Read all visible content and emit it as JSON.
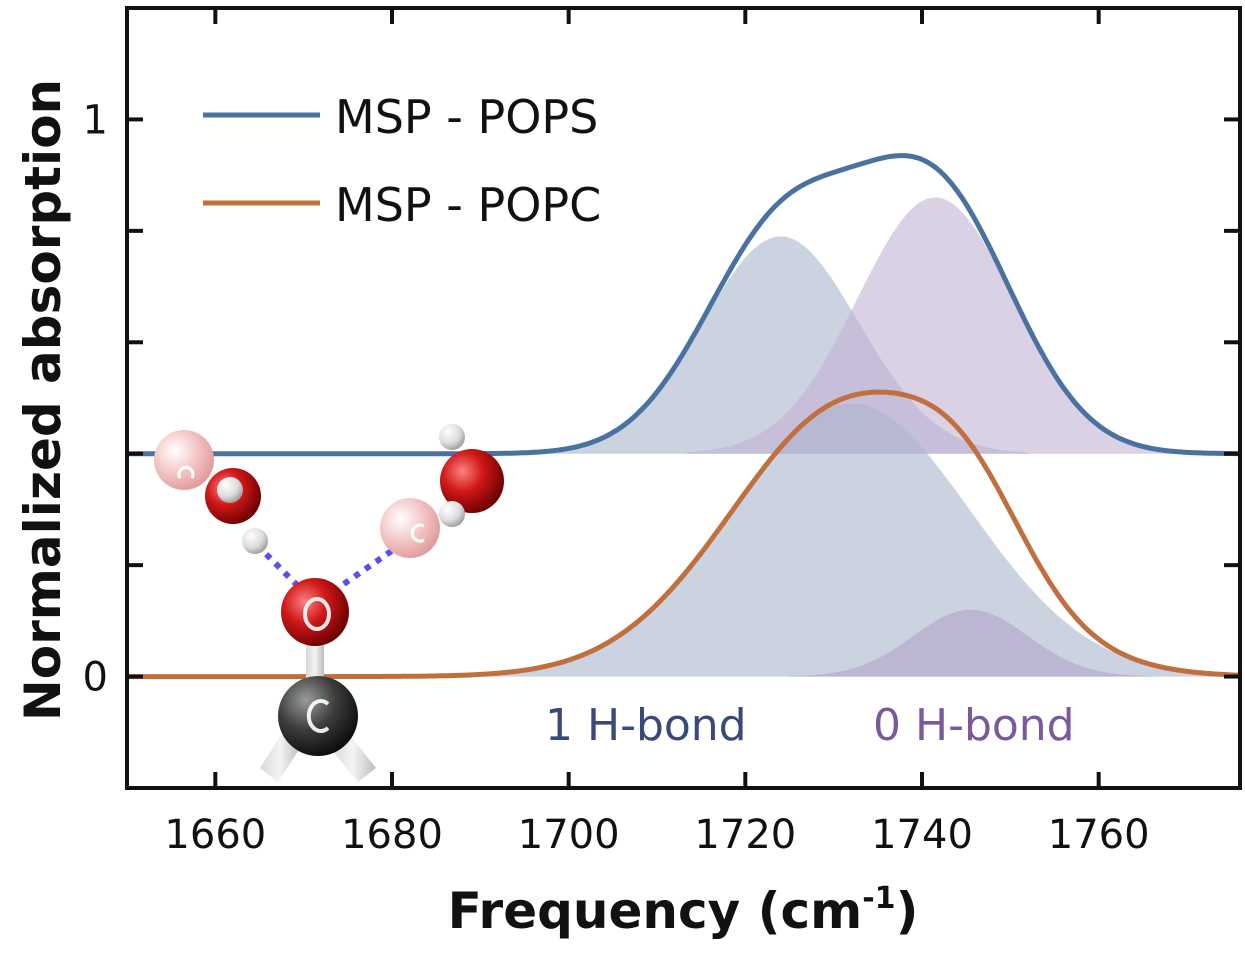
{
  "chart_data": {
    "type": "area",
    "xlabel": "Frequency (cm",
    "xlabel_sup": "-1",
    "xlabel_end": ")",
    "ylabel": "Normalized absorption",
    "xlim": [
      1650,
      1776
    ],
    "ylim": [
      -0.2,
      1.2
    ],
    "x_ticks": [
      1660,
      1680,
      1700,
      1720,
      1740,
      1760
    ],
    "y_ticks": [
      0,
      1
    ],
    "y_minor_ticks": [
      0.2,
      0.4,
      0.6,
      0.8
    ],
    "legend_position": "top-left",
    "series": [
      {
        "name": "MSP - POPS",
        "color": "#4a72a0",
        "baseline": 0.4,
        "components": [
          {
            "label": "1 H-bond",
            "center": 1724,
            "width": 8.8,
            "amplitude": 0.39,
            "color": "#aab6cc"
          },
          {
            "label": "0 H-bond",
            "center": 1741.5,
            "width": 8.8,
            "amplitude": 0.46,
            "color": "#c3b3d3"
          }
        ]
      },
      {
        "name": "MSP - POPC",
        "color": "#c0703f",
        "baseline": 0.0,
        "components": [
          {
            "label": "1 H-bond",
            "center": 1732,
            "width": 13.5,
            "amplitude": 0.49,
            "color": "#aab6cc"
          },
          {
            "label": "0 H-bond",
            "center": 1745.5,
            "width": 6.5,
            "amplitude": 0.12,
            "color": "#b3a3c8"
          }
        ]
      }
    ],
    "annotations": [
      {
        "text": "1 H-bond",
        "color": "#38497a"
      },
      {
        "text": "0 H-bond",
        "color": "#7a5a9a"
      }
    ]
  },
  "inset": {
    "icon": "carbonyl-water-hydrogen-bond-molecule-icon",
    "atom_o_label": "O",
    "atom_c_label": "C"
  }
}
